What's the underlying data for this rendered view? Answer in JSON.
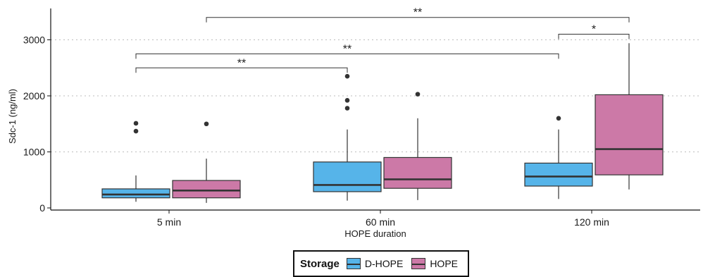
{
  "chart_data": {
    "type": "box",
    "xlabel": "HOPE duration",
    "ylabel": "Sdc-1 (ng/ml)",
    "ylim": [
      0,
      3500
    ],
    "yticks": [
      0,
      1000,
      2000,
      3000
    ],
    "ytick_labels": [
      "0",
      "1000",
      "2000",
      "3000"
    ],
    "grid": "horizontal dotted",
    "categories": [
      "5 min",
      "60 min",
      "120 min"
    ],
    "legend": {
      "title": "Storage",
      "position": "bottom",
      "entries": [
        "D-HOPE",
        "HOPE"
      ]
    },
    "series": [
      {
        "name": "D-HOPE",
        "color": "#56B4E9",
        "boxes": [
          {
            "category": "5 min",
            "whisker_low": 110,
            "q1": 180,
            "median": 240,
            "q3": 340,
            "whisker_high": 580,
            "outliers": [
              1370,
              1510
            ]
          },
          {
            "category": "60 min",
            "whisker_low": 130,
            "q1": 290,
            "median": 410,
            "q3": 820,
            "whisker_high": 1400,
            "outliers": [
              1780,
              1920,
              2350
            ]
          },
          {
            "category": "120 min",
            "whisker_low": 160,
            "q1": 390,
            "median": 560,
            "q3": 800,
            "whisker_high": 1400,
            "outliers": [
              1600
            ]
          }
        ]
      },
      {
        "name": "HOPE",
        "color": "#CC79A7",
        "boxes": [
          {
            "category": "5 min",
            "whisker_low": 90,
            "q1": 180,
            "median": 310,
            "q3": 490,
            "whisker_high": 880,
            "outliers": [
              1500
            ]
          },
          {
            "category": "60 min",
            "whisker_low": 140,
            "q1": 350,
            "median": 510,
            "q3": 900,
            "whisker_high": 1600,
            "outliers": [
              2030
            ]
          },
          {
            "category": "120 min",
            "whisker_low": 330,
            "q1": 590,
            "median": 1050,
            "q3": 2020,
            "whisker_high": 2940,
            "outliers": []
          }
        ]
      }
    ],
    "annotations": [
      {
        "from": {
          "category": "5 min",
          "series": "D-HOPE"
        },
        "to": {
          "category": "60 min",
          "series": "D-HOPE"
        },
        "y": 2500,
        "label": "**"
      },
      {
        "from": {
          "category": "5 min",
          "series": "D-HOPE"
        },
        "to": {
          "category": "120 min",
          "series": "D-HOPE"
        },
        "y": 2750,
        "label": "**"
      },
      {
        "from": {
          "category": "120 min",
          "series": "D-HOPE"
        },
        "to": {
          "category": "120 min",
          "series": "HOPE"
        },
        "y": 3100,
        "label": "*"
      },
      {
        "from": {
          "category": "5 min",
          "series": "HOPE"
        },
        "to": {
          "category": "120 min",
          "series": "HOPE"
        },
        "y": 3400,
        "label": "**"
      }
    ]
  }
}
